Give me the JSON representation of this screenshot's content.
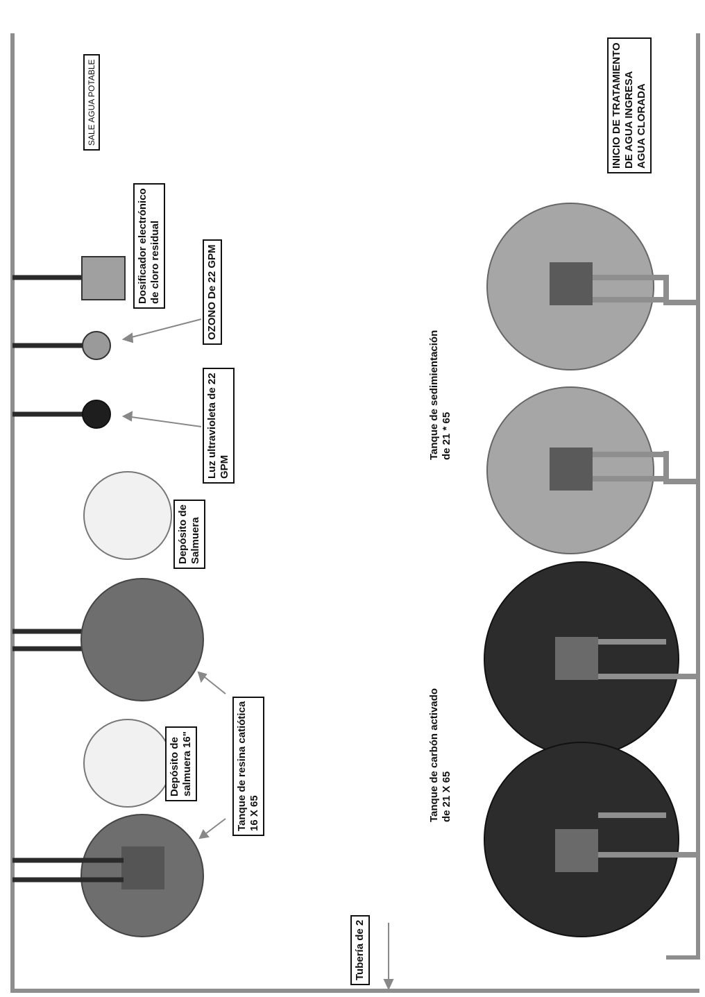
{
  "diagram": {
    "labels": {
      "sale_agua": [
        "SALE AGUA  POTABLE"
      ],
      "inicio": [
        "INICIO DE TRATAMIENTO",
        "DE AGUA INGRESA",
        "AGUA CLORADA"
      ],
      "dosificador": [
        "Dosificador electrónico",
        "de cloro residual"
      ],
      "ozono": [
        "OZONO De 22 GPM"
      ],
      "uv": [
        "Luz ultravioleta de 22",
        "GPM"
      ],
      "salmuera1": [
        "Depósito de",
        "Salmuera"
      ],
      "sedimentacion": [
        "Tanque de sedimientación",
        "de 21 * 65"
      ],
      "carbon": [
        "Tanque de carbón activado",
        "de 21 X 65"
      ],
      "salmuera2": [
        "Depósito de",
        "salmuera 16\""
      ],
      "resina": [
        "Tanque de resina catiótica",
        "16 X 65"
      ],
      "tuberia": [
        "Tubería de 2"
      ]
    },
    "colors": {
      "pipe": "#8e8e8e",
      "dark_pipe": "#2a2a2a",
      "resin": "#6e6e6e",
      "carbon": "#2c2c2c",
      "sediment": "#a6a6a6",
      "brine": "#f1f1f1",
      "ozone": "#9a9a9a",
      "uv": "#1e1e1e",
      "doser": "#a0a0a0",
      "inner_square": "#5a5a5a"
    }
  }
}
